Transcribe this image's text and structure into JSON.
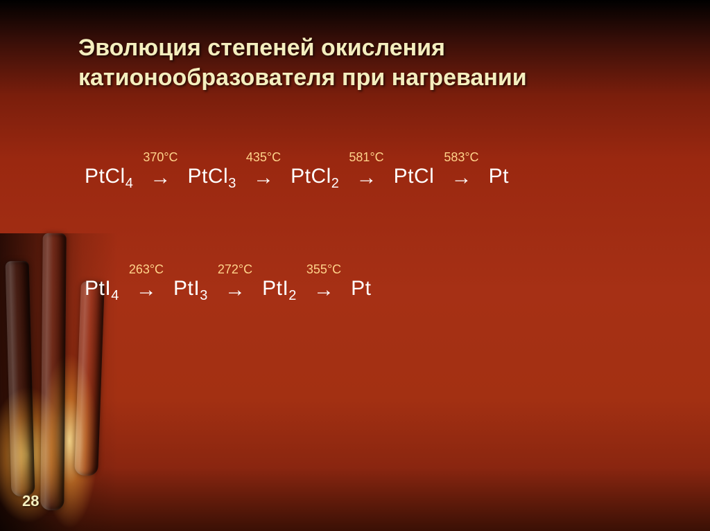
{
  "title": "Эволюция степеней окисления катионообразователя при нагревании",
  "slide_number": "28",
  "style": {
    "title_color": "#f4eebe",
    "title_fontsize_pt": 26,
    "body_color": "#ffffff",
    "body_fontsize_pt": 22,
    "temp_color": "#ffd38a",
    "temp_fontsize_pt": 14,
    "background_gradient": [
      "#000000",
      "#3a0f08",
      "#7a1e0c",
      "#9a2810",
      "#a63015",
      "#a33012",
      "#8a2610",
      "#3a1005"
    ],
    "arrow_glyph": "→"
  },
  "chains": [
    {
      "species": [
        {
          "base": "PtCl",
          "sub": "4"
        },
        {
          "base": "PtCl",
          "sub": "3"
        },
        {
          "base": "PtCl",
          "sub": "2"
        },
        {
          "base": "PtCl",
          "sub": ""
        },
        {
          "base": "Pt",
          "sub": ""
        }
      ],
      "temps": [
        "370°C",
        "435°C",
        "581°C",
        "583°C"
      ]
    },
    {
      "species": [
        {
          "base": "PtI",
          "sub": "4"
        },
        {
          "base": "PtI",
          "sub": "3"
        },
        {
          "base": "PtI",
          "sub": "2"
        },
        {
          "base": "Pt",
          "sub": ""
        }
      ],
      "temps": [
        "263°C",
        "272°C",
        "355°C"
      ]
    }
  ]
}
